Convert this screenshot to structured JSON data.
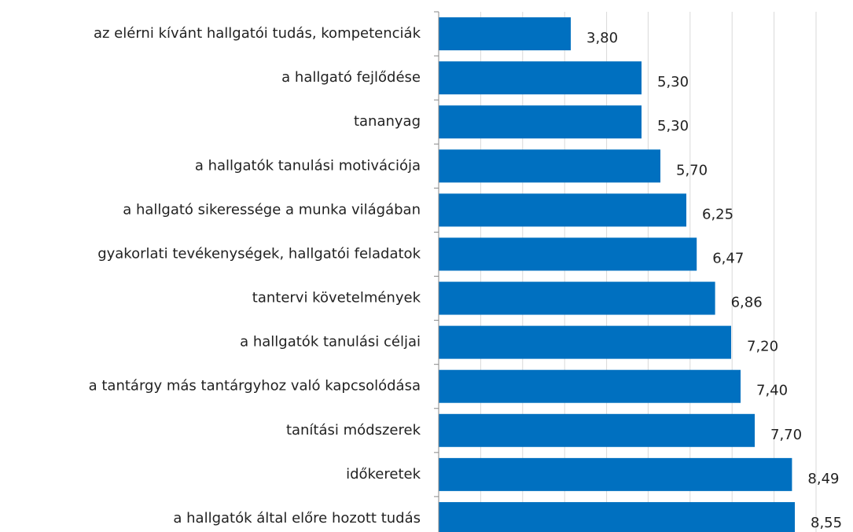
{
  "chart_data": {
    "type": "barh",
    "categories": [
      "az elérni kívánt hallgatói tudás, kompetenciák",
      "a hallgató fejlődése",
      "tananyag",
      "a hallgatók tanulási motivációja",
      "a hallgató sikeressége a munka világában",
      "gyakorlati tevékenységek, hallgatói feladatok",
      "tantervi követelmények",
      "a hallgatók tanulási céljai",
      "a tantárgy más tantárgyhoz való kapcsolódása",
      "tanítási módszerek",
      "időkeretek",
      "a hallgatók által előre hozott tudás"
    ],
    "values": [
      3.8,
      5.3,
      5.3,
      5.7,
      6.25,
      6.47,
      6.86,
      7.2,
      7.4,
      7.7,
      8.49,
      8.55
    ],
    "value_labels": [
      "3,80",
      "5,30",
      "5,30",
      "5,70",
      "6,25",
      "6,47",
      "6,86",
      "7,20",
      "7,40",
      "7,70",
      "8,49",
      "8,55"
    ],
    "color": "#0070c0",
    "xlim": [
      1,
      9.04
    ],
    "xticks": [
      1.89,
      2.78,
      3.67,
      4.56,
      5.44,
      6.33,
      7.22,
      8.11,
      9
    ],
    "grid": true
  }
}
